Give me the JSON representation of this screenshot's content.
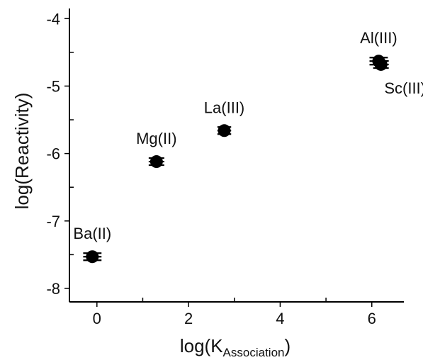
{
  "chart_data": {
    "type": "scatter",
    "xlabel": {
      "main": "log(K",
      "subscript": "Association",
      "close": ")"
    },
    "ylabel": "log(Reactivity)",
    "xlim": [
      -0.6,
      6.7
    ],
    "ylim": [
      -8.2,
      -3.85
    ],
    "x_ticks": [
      0,
      2,
      4,
      6
    ],
    "x_tick_labels": [
      "0",
      "2",
      "4",
      "6"
    ],
    "x_minor_ticks": [
      1,
      3,
      5
    ],
    "y_ticks": [
      -4,
      -5,
      -6,
      -7,
      -8
    ],
    "y_tick_labels": [
      "-4",
      "-5",
      "-6",
      "-7",
      "-8"
    ],
    "y_minor_ticks": [
      -4.5,
      -5.5,
      -6.5,
      -7.5
    ],
    "grid": false,
    "points": [
      {
        "label": "Ba(II)",
        "x": -0.1,
        "y": -7.53,
        "xerr": 0.2,
        "label_position": "above"
      },
      {
        "label": "Mg(II)",
        "x": 1.3,
        "y": -6.12,
        "xerr": 0.17,
        "label_position": "above"
      },
      {
        "label": "La(III)",
        "x": 2.78,
        "y": -5.66,
        "xerr": 0.15,
        "label_position": "above"
      },
      {
        "label": "Al(III)",
        "x": 6.15,
        "y": -4.63,
        "xerr": 0.2,
        "label_position": "above"
      },
      {
        "label": "Sc(III)",
        "x": 6.2,
        "y": -4.68,
        "xerr": 0.17,
        "label_position": "below-right"
      }
    ],
    "marker_color": "#000000"
  }
}
